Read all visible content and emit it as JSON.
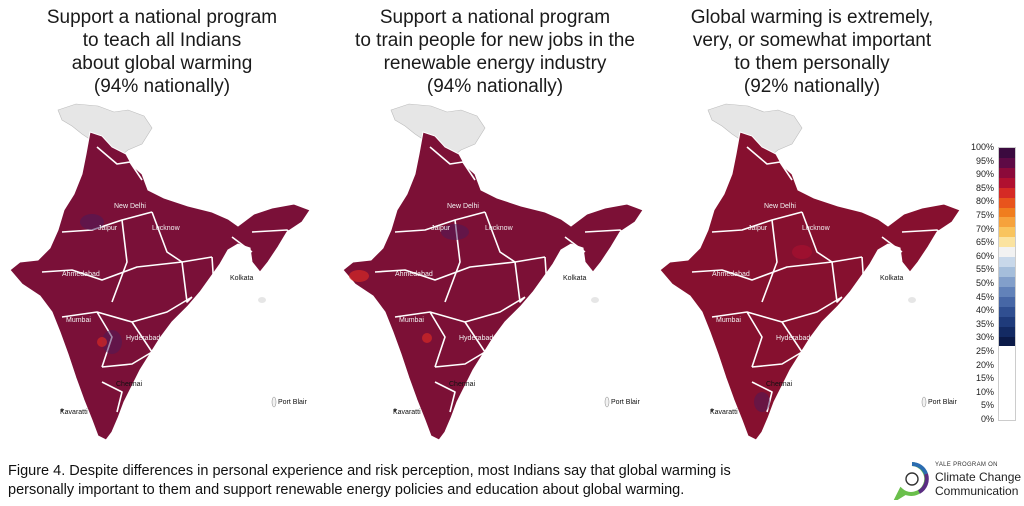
{
  "panels": [
    {
      "title_lines": [
        "Support a national program",
        "to teach all Indians",
        "about global warming",
        "(94% nationally)"
      ],
      "value_percent": 94,
      "fill_color": "#7a1038"
    },
    {
      "title_lines": [
        "Support a national program",
        "to train people for new jobs in the",
        "renewable energy industry",
        "(94% nationally)"
      ],
      "value_percent": 94,
      "fill_color": "#7c1036"
    },
    {
      "title_lines": [
        "Global warming is extremely,",
        "very, or somewhat important",
        "to them personally",
        "(92% nationally)"
      ],
      "value_percent": 92,
      "fill_color": "#86102f"
    }
  ],
  "cities": {
    "new_delhi": "New Delhi",
    "jaipur": "Jaipur",
    "lucknow": "Lucknow",
    "ahmedabad": "Ahmedabad",
    "kolkata": "Kolkata",
    "mumbai": "Mumbai",
    "hyderabad": "Hyderabad",
    "chennai": "Chennai",
    "kavaratti": "Kavaratti",
    "port_blair": "Port Blair"
  },
  "legend": {
    "labels": [
      "100%",
      "95%",
      "90%",
      "85%",
      "80%",
      "75%",
      "70%",
      "65%",
      "60%",
      "55%",
      "50%",
      "45%",
      "40%",
      "35%",
      "30%",
      "25%",
      "20%",
      "15%",
      "10%",
      "5%",
      "0%"
    ],
    "colors": [
      "#3b0a3f",
      "#5e0a45",
      "#8b0a3a",
      "#b01030",
      "#d52a25",
      "#e8541c",
      "#f07d1e",
      "#f6a23c",
      "#f9c45e",
      "#fbe3a0",
      "#f2f2f2",
      "#c8d8ea",
      "#a5bedb",
      "#829fca",
      "#6282b9",
      "#4767a6",
      "#304f91",
      "#1f3b7b",
      "#132a63",
      "#0b1a48"
    ]
  },
  "caption": {
    "line1": "Figure 4. Despite differences in personal experience and risk perception, most Indians say that global warming is",
    "line2": "personally important to them and support renewable energy policies and education about global warming."
  },
  "logo": {
    "top": "YALE PROGRAM ON",
    "line1": "Climate Change",
    "line2": "Communication"
  },
  "colors": {
    "kashmir_gray": "#e6e6e6",
    "border_white": "#ffffff",
    "logo_green": "#6abf4b",
    "logo_blue": "#2b6cb0",
    "logo_purple": "#5a2d82"
  }
}
